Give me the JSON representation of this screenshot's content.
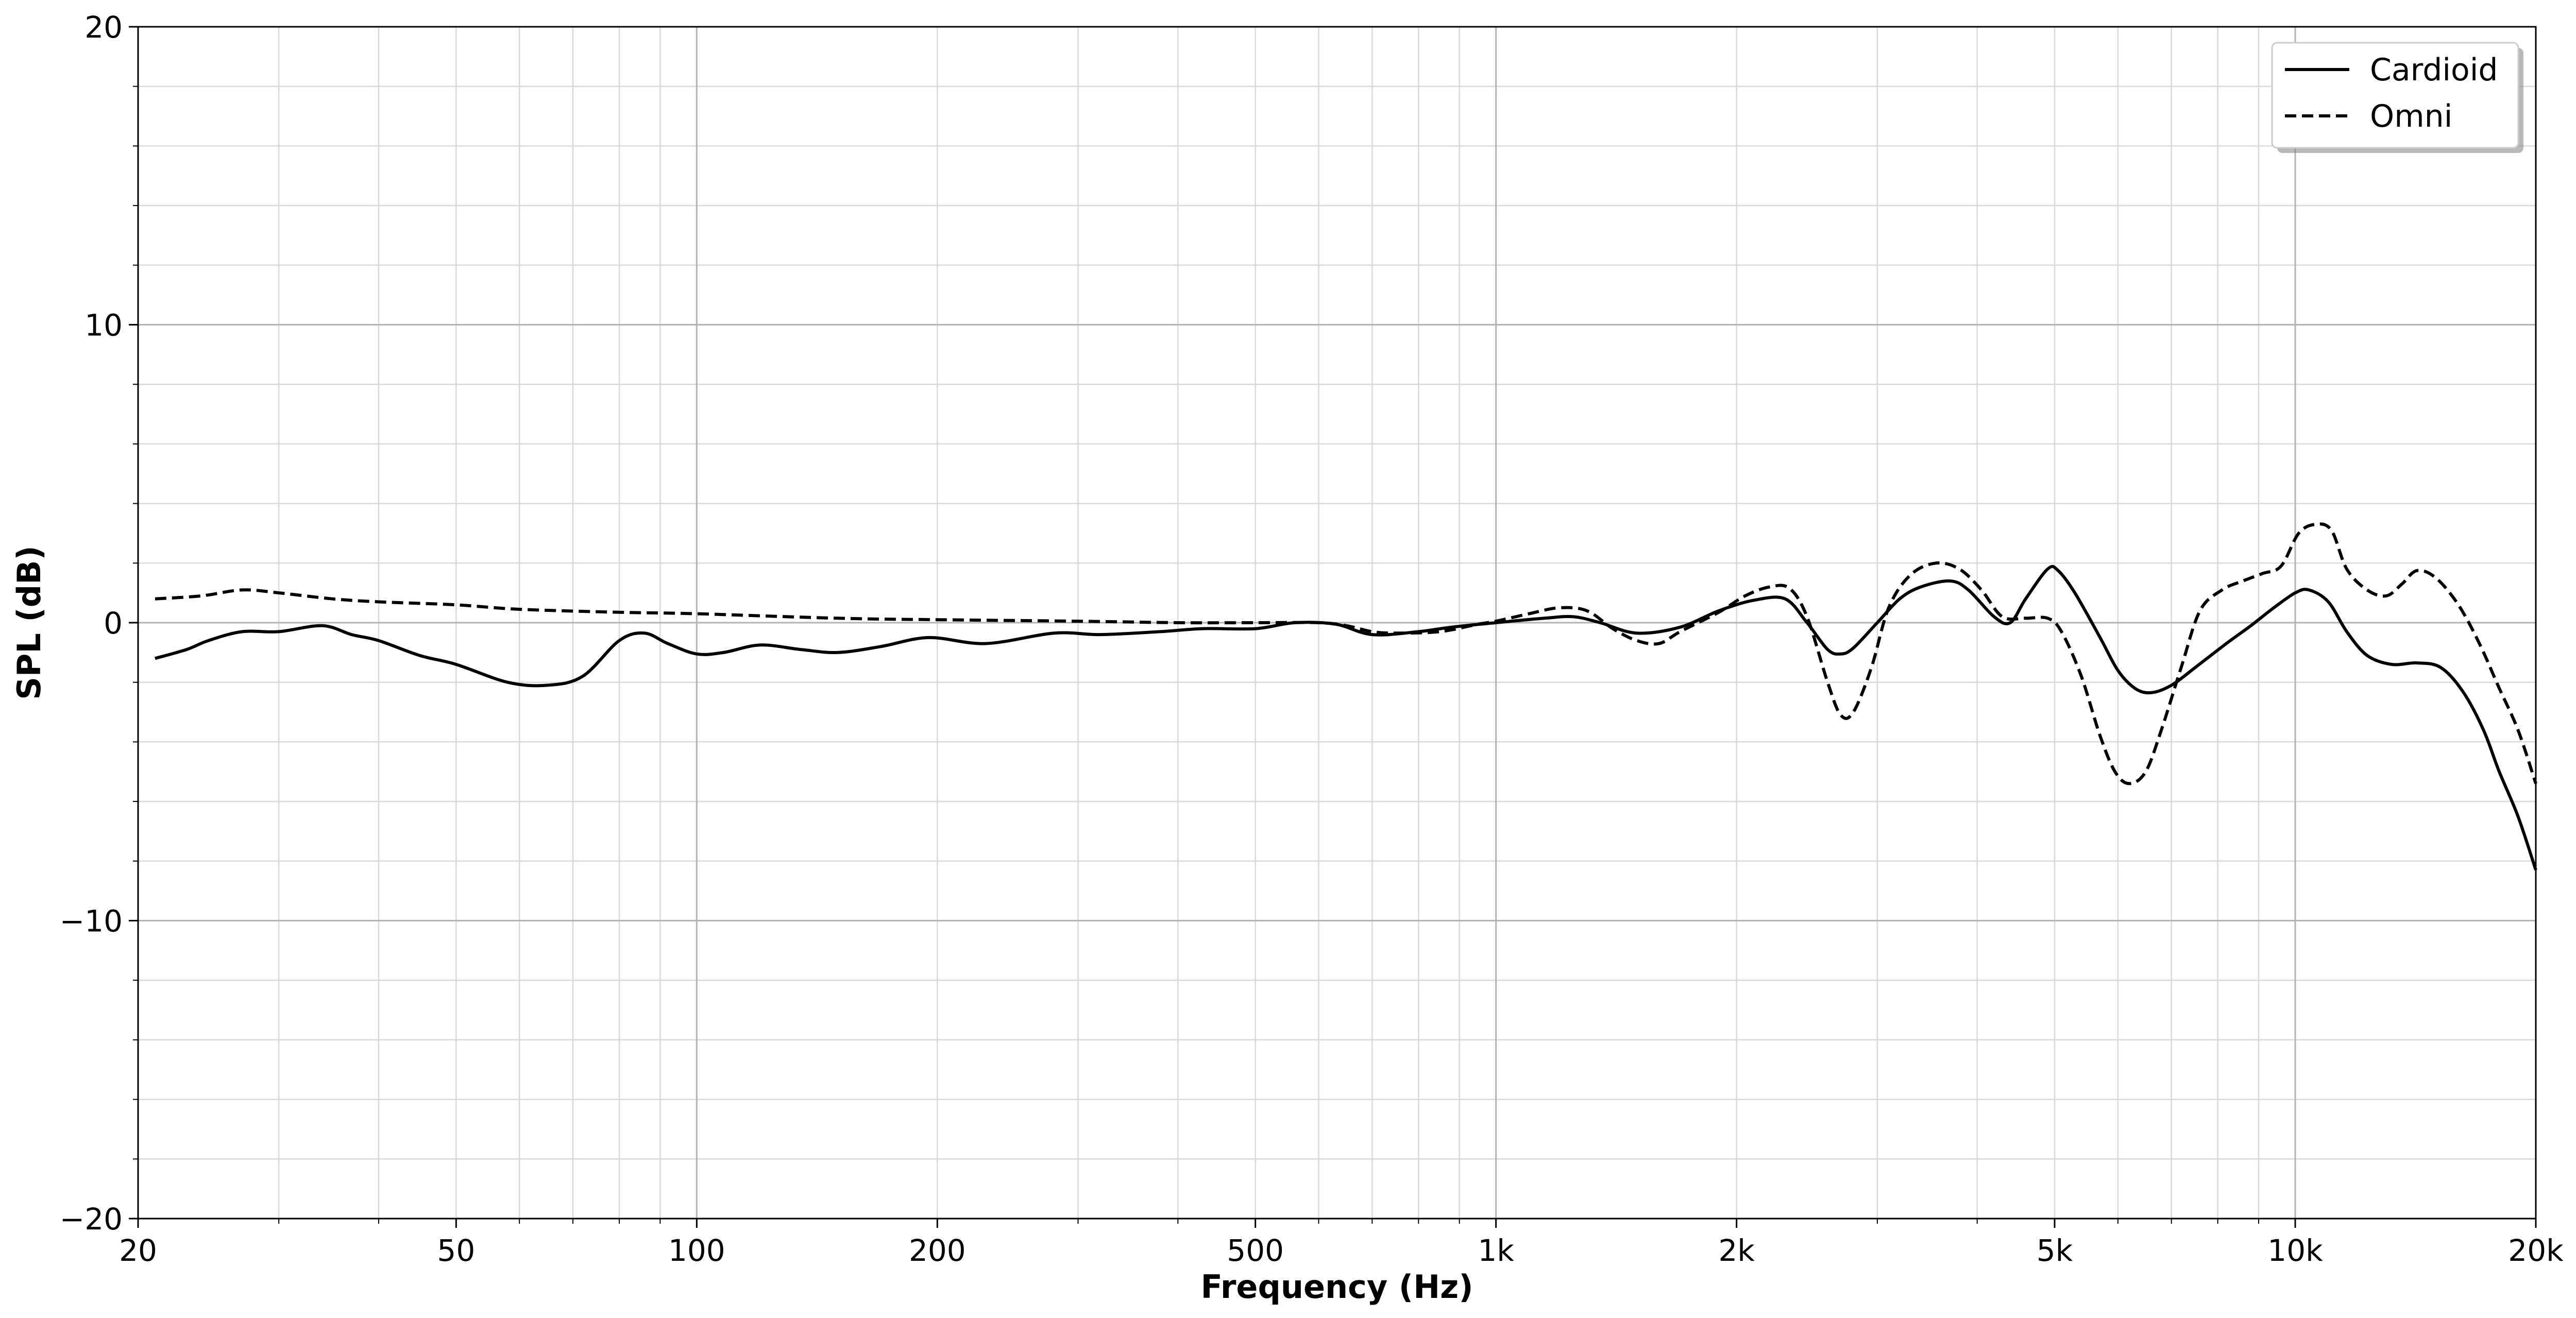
{
  "chart_data": {
    "type": "line",
    "xlabel": "Frequency (Hz)",
    "ylabel": "SPL (dB)",
    "xscale": "log",
    "xlim": [
      20,
      20000
    ],
    "ylim": [
      -20,
      20
    ],
    "grid": true,
    "legend_position": "top-right",
    "x_ticks": [
      {
        "value": 20,
        "label": "20"
      },
      {
        "value": 50,
        "label": "50"
      },
      {
        "value": 100,
        "label": "100"
      },
      {
        "value": 200,
        "label": "200"
      },
      {
        "value": 500,
        "label": "500"
      },
      {
        "value": 1000,
        "label": "1k"
      },
      {
        "value": 2000,
        "label": "2k"
      },
      {
        "value": 5000,
        "label": "5k"
      },
      {
        "value": 10000,
        "label": "10k"
      },
      {
        "value": 20000,
        "label": "20k"
      }
    ],
    "y_ticks": [
      {
        "value": 20,
        "label": "20"
      },
      {
        "value": 10,
        "label": "10"
      },
      {
        "value": 0,
        "label": "0"
      },
      {
        "value": -10,
        "label": "−10"
      },
      {
        "value": -20,
        "label": "−20"
      }
    ],
    "series": [
      {
        "name": "Cardioid",
        "color": "#000000",
        "style": "solid",
        "points": [
          [
            21,
            -1.2
          ],
          [
            23,
            -0.9
          ],
          [
            24.5,
            -0.6
          ],
          [
            27,
            -0.3
          ],
          [
            30,
            -0.3
          ],
          [
            34,
            -0.1
          ],
          [
            37,
            -0.4
          ],
          [
            40,
            -0.6
          ],
          [
            45,
            -1.1
          ],
          [
            50,
            -1.4
          ],
          [
            58,
            -2.0
          ],
          [
            65,
            -2.1
          ],
          [
            72,
            -1.8
          ],
          [
            80,
            -0.6
          ],
          [
            86,
            -0.35
          ],
          [
            92,
            -0.7
          ],
          [
            100,
            -1.05
          ],
          [
            108,
            -1.0
          ],
          [
            120,
            -0.75
          ],
          [
            135,
            -0.9
          ],
          [
            150,
            -1.0
          ],
          [
            170,
            -0.8
          ],
          [
            195,
            -0.5
          ],
          [
            230,
            -0.7
          ],
          [
            280,
            -0.35
          ],
          [
            320,
            -0.4
          ],
          [
            380,
            -0.3
          ],
          [
            430,
            -0.2
          ],
          [
            500,
            -0.2
          ],
          [
            560,
            0.0
          ],
          [
            630,
            -0.05
          ],
          [
            700,
            -0.4
          ],
          [
            800,
            -0.3
          ],
          [
            880,
            -0.15
          ],
          [
            1000,
            0.0
          ],
          [
            1150,
            0.15
          ],
          [
            1250,
            0.2
          ],
          [
            1350,
            0.0
          ],
          [
            1500,
            -0.35
          ],
          [
            1700,
            -0.15
          ],
          [
            1900,
            0.4
          ],
          [
            2100,
            0.75
          ],
          [
            2300,
            0.8
          ],
          [
            2450,
            0.0
          ],
          [
            2600,
            -0.9
          ],
          [
            2700,
            -1.05
          ],
          [
            2800,
            -0.85
          ],
          [
            3000,
            0.0
          ],
          [
            3200,
            0.8
          ],
          [
            3400,
            1.2
          ],
          [
            3700,
            1.4
          ],
          [
            3900,
            1.1
          ],
          [
            4200,
            0.2
          ],
          [
            4400,
            0.0
          ],
          [
            4600,
            0.8
          ],
          [
            4900,
            1.8
          ],
          [
            5050,
            1.75
          ],
          [
            5300,
            1.0
          ],
          [
            5700,
            -0.5
          ],
          [
            6000,
            -1.6
          ],
          [
            6300,
            -2.2
          ],
          [
            6600,
            -2.35
          ],
          [
            7000,
            -2.1
          ],
          [
            7500,
            -1.5
          ],
          [
            8200,
            -0.7
          ],
          [
            8800,
            -0.1
          ],
          [
            9400,
            0.5
          ],
          [
            10000,
            1.0
          ],
          [
            10400,
            1.1
          ],
          [
            11000,
            0.7
          ],
          [
            11600,
            -0.3
          ],
          [
            12300,
            -1.1
          ],
          [
            13200,
            -1.4
          ],
          [
            14200,
            -1.35
          ],
          [
            15200,
            -1.5
          ],
          [
            16200,
            -2.3
          ],
          [
            17200,
            -3.6
          ],
          [
            18000,
            -5.0
          ],
          [
            19000,
            -6.5
          ],
          [
            20000,
            -8.3
          ]
        ]
      },
      {
        "name": "Omni",
        "color": "#000000",
        "style": "dashed",
        "points": [
          [
            21,
            0.8
          ],
          [
            24,
            0.9
          ],
          [
            27,
            1.1
          ],
          [
            30,
            1.0
          ],
          [
            35,
            0.8
          ],
          [
            40,
            0.7
          ],
          [
            50,
            0.6
          ],
          [
            60,
            0.45
          ],
          [
            80,
            0.35
          ],
          [
            100,
            0.3
          ],
          [
            150,
            0.15
          ],
          [
            200,
            0.1
          ],
          [
            300,
            0.05
          ],
          [
            400,
            0.0
          ],
          [
            500,
            0.0
          ],
          [
            600,
            0.0
          ],
          [
            650,
            -0.1
          ],
          [
            700,
            -0.3
          ],
          [
            750,
            -0.35
          ],
          [
            850,
            -0.3
          ],
          [
            950,
            -0.05
          ],
          [
            1000,
            0.05
          ],
          [
            1100,
            0.3
          ],
          [
            1200,
            0.5
          ],
          [
            1300,
            0.4
          ],
          [
            1400,
            -0.2
          ],
          [
            1500,
            -0.6
          ],
          [
            1600,
            -0.7
          ],
          [
            1700,
            -0.3
          ],
          [
            1900,
            0.35
          ],
          [
            2050,
            0.9
          ],
          [
            2200,
            1.2
          ],
          [
            2330,
            1.15
          ],
          [
            2450,
            0.2
          ],
          [
            2600,
            -2.0
          ],
          [
            2700,
            -3.1
          ],
          [
            2800,
            -3.0
          ],
          [
            2950,
            -1.5
          ],
          [
            3100,
            0.5
          ],
          [
            3300,
            1.6
          ],
          [
            3550,
            2.0
          ],
          [
            3800,
            1.8
          ],
          [
            4050,
            1.1
          ],
          [
            4300,
            0.2
          ],
          [
            4600,
            0.15
          ],
          [
            4900,
            0.15
          ],
          [
            5100,
            -0.3
          ],
          [
            5400,
            -1.8
          ],
          [
            5700,
            -3.8
          ],
          [
            5950,
            -5.0
          ],
          [
            6200,
            -5.4
          ],
          [
            6500,
            -5.0
          ],
          [
            6800,
            -3.6
          ],
          [
            7200,
            -1.5
          ],
          [
            7600,
            0.4
          ],
          [
            8100,
            1.1
          ],
          [
            8600,
            1.4
          ],
          [
            9100,
            1.65
          ],
          [
            9600,
            1.9
          ],
          [
            10100,
            3.0
          ],
          [
            10600,
            3.3
          ],
          [
            11100,
            3.1
          ],
          [
            11600,
            1.8
          ],
          [
            12300,
            1.1
          ],
          [
            13000,
            0.9
          ],
          [
            13600,
            1.3
          ],
          [
            14200,
            1.75
          ],
          [
            15000,
            1.5
          ],
          [
            16000,
            0.6
          ],
          [
            17000,
            -0.7
          ],
          [
            18000,
            -2.2
          ],
          [
            19000,
            -3.6
          ],
          [
            20000,
            -5.4
          ]
        ]
      }
    ]
  }
}
